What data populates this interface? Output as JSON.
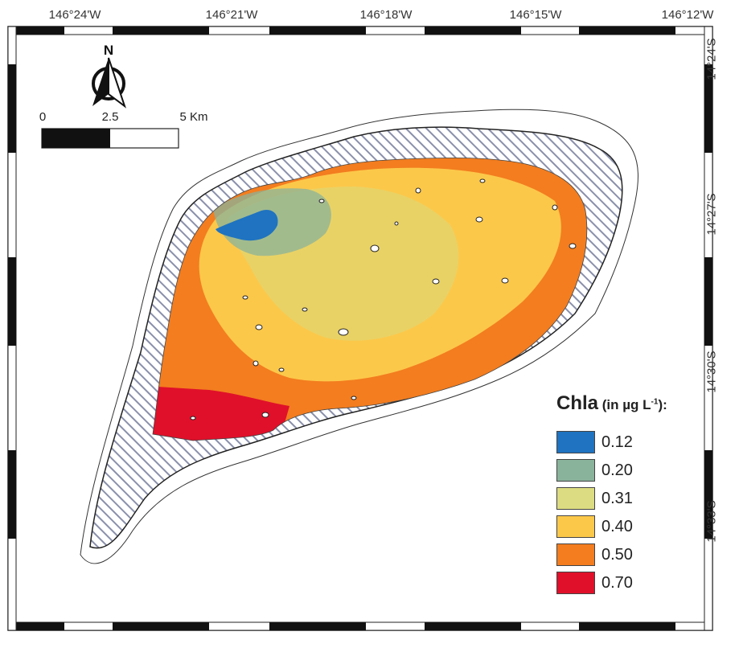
{
  "map": {
    "top_labels": [
      "146°24'W",
      "146°21'W",
      "146°18'W",
      "146°15'W",
      "146°12'W"
    ],
    "right_labels": [
      "14°24'S",
      "14°27'S",
      "14°30'S",
      "14°33'S"
    ]
  },
  "north_arrow": {
    "letter": "N"
  },
  "scale_bar": {
    "labels": [
      "0",
      "2.5",
      "5 Km"
    ]
  },
  "legend": {
    "title_main": "Chla",
    "title_unit_pre": " (in µg L",
    "title_sup": "-1",
    "title_unit_post": "):",
    "items": [
      {
        "label": "0.12",
        "color": "#1f73c0"
      },
      {
        "label": "0.20",
        "color": "#8ab39b"
      },
      {
        "label": "0.31",
        "color": "#dcdc82"
      },
      {
        "label": "0.40",
        "color": "#fcc84a"
      },
      {
        "label": "0.50",
        "color": "#f37d1f"
      },
      {
        "label": "0.70",
        "color": "#e0102a"
      }
    ]
  }
}
